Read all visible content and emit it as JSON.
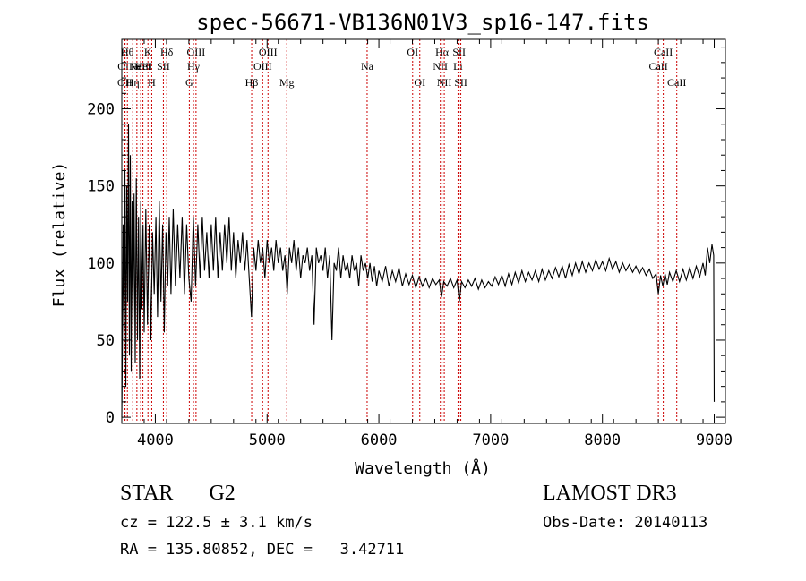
{
  "chart_data": {
    "type": "line",
    "title": "spec-56671-VB136N01V3_sp16-147.fits",
    "xlabel": "Wavelength (Å)",
    "ylabel": "Flux (relative)",
    "xlim": [
      3700,
      9100
    ],
    "ylim": [
      -4,
      245
    ],
    "xticks": [
      4000,
      5000,
      6000,
      7000,
      8000,
      9000
    ],
    "yticks": [
      0,
      50,
      100,
      150,
      200
    ],
    "xtick_labels": [
      "4000",
      "5000",
      "6000",
      "7000",
      "8000",
      "9000"
    ],
    "ytick_labels": [
      "0",
      "50",
      "100",
      "150",
      "200"
    ],
    "line_color": "#000000",
    "marker_color": "#cc0000",
    "series": [
      {
        "name": "flux",
        "points": [
          [
            3700,
            0
          ],
          [
            3705,
            40
          ],
          [
            3712,
            125
          ],
          [
            3720,
            55
          ],
          [
            3728,
            160
          ],
          [
            3736,
            20
          ],
          [
            3744,
            150
          ],
          [
            3752,
            75
          ],
          [
            3760,
            190
          ],
          [
            3768,
            40
          ],
          [
            3776,
            170
          ],
          [
            3784,
            30
          ],
          [
            3792,
            140
          ],
          [
            3800,
            60
          ],
          [
            3810,
            145
          ],
          [
            3820,
            35
          ],
          [
            3830,
            155
          ],
          [
            3840,
            50
          ],
          [
            3850,
            130
          ],
          [
            3860,
            25
          ],
          [
            3870,
            140
          ],
          [
            3880,
            70
          ],
          [
            3890,
            125
          ],
          [
            3900,
            55
          ],
          [
            3915,
            135
          ],
          [
            3930,
            60
          ],
          [
            3945,
            125
          ],
          [
            3960,
            50
          ],
          [
            3975,
            120
          ],
          [
            3990,
            80
          ],
          [
            4005,
            130
          ],
          [
            4020,
            65
          ],
          [
            4035,
            140
          ],
          [
            4050,
            75
          ],
          [
            4065,
            125
          ],
          [
            4080,
            55
          ],
          [
            4095,
            120
          ],
          [
            4110,
            85
          ],
          [
            4125,
            130
          ],
          [
            4140,
            80
          ],
          [
            4160,
            135
          ],
          [
            4180,
            85
          ],
          [
            4200,
            125
          ],
          [
            4220,
            90
          ],
          [
            4240,
            130
          ],
          [
            4260,
            80
          ],
          [
            4280,
            125
          ],
          [
            4300,
            90
          ],
          [
            4320,
            75
          ],
          [
            4340,
            130
          ],
          [
            4360,
            85
          ],
          [
            4380,
            125
          ],
          [
            4400,
            90
          ],
          [
            4420,
            130
          ],
          [
            4440,
            95
          ],
          [
            4460,
            120
          ],
          [
            4480,
            90
          ],
          [
            4500,
            125
          ],
          [
            4520,
            95
          ],
          [
            4540,
            130
          ],
          [
            4560,
            90
          ],
          [
            4580,
            120
          ],
          [
            4600,
            95
          ],
          [
            4620,
            125
          ],
          [
            4640,
            100
          ],
          [
            4660,
            130
          ],
          [
            4680,
            95
          ],
          [
            4700,
            120
          ],
          [
            4720,
            90
          ],
          [
            4740,
            115
          ],
          [
            4760,
            100
          ],
          [
            4780,
            120
          ],
          [
            4800,
            95
          ],
          [
            4820,
            115
          ],
          [
            4840,
            90
          ],
          [
            4860,
            65
          ],
          [
            4880,
            110
          ],
          [
            4900,
            95
          ],
          [
            4920,
            115
          ],
          [
            4940,
            100
          ],
          [
            4960,
            110
          ],
          [
            4980,
            90
          ],
          [
            5000,
            115
          ],
          [
            5020,
            100
          ],
          [
            5040,
            110
          ],
          [
            5060,
            95
          ],
          [
            5080,
            115
          ],
          [
            5100,
            100
          ],
          [
            5120,
            110
          ],
          [
            5140,
            95
          ],
          [
            5160,
            105
          ],
          [
            5180,
            80
          ],
          [
            5200,
            110
          ],
          [
            5220,
            100
          ],
          [
            5240,
            115
          ],
          [
            5260,
            95
          ],
          [
            5280,
            110
          ],
          [
            5300,
            90
          ],
          [
            5320,
            105
          ],
          [
            5340,
            100
          ],
          [
            5360,
            110
          ],
          [
            5380,
            95
          ],
          [
            5400,
            105
          ],
          [
            5420,
            60
          ],
          [
            5440,
            110
          ],
          [
            5460,
            100
          ],
          [
            5480,
            105
          ],
          [
            5500,
            95
          ],
          [
            5520,
            110
          ],
          [
            5540,
            90
          ],
          [
            5560,
            105
          ],
          [
            5580,
            50
          ],
          [
            5600,
            100
          ],
          [
            5620,
            95
          ],
          [
            5640,
            110
          ],
          [
            5660,
            90
          ],
          [
            5680,
            105
          ],
          [
            5700,
            95
          ],
          [
            5720,
            100
          ],
          [
            5740,
            90
          ],
          [
            5760,
            105
          ],
          [
            5780,
            95
          ],
          [
            5800,
            100
          ],
          [
            5820,
            85
          ],
          [
            5840,
            105
          ],
          [
            5860,
            95
          ],
          [
            5880,
            100
          ],
          [
            5900,
            90
          ],
          [
            5920,
            100
          ],
          [
            5940,
            88
          ],
          [
            5960,
            98
          ],
          [
            5980,
            85
          ],
          [
            6000,
            95
          ],
          [
            6030,
            88
          ],
          [
            6060,
            98
          ],
          [
            6090,
            85
          ],
          [
            6120,
            95
          ],
          [
            6150,
            88
          ],
          [
            6180,
            97
          ],
          [
            6210,
            85
          ],
          [
            6240,
            93
          ],
          [
            6270,
            86
          ],
          [
            6300,
            92
          ],
          [
            6330,
            84
          ],
          [
            6360,
            91
          ],
          [
            6390,
            85
          ],
          [
            6420,
            90
          ],
          [
            6450,
            84
          ],
          [
            6480,
            90
          ],
          [
            6510,
            86
          ],
          [
            6540,
            89
          ],
          [
            6560,
            78
          ],
          [
            6580,
            88
          ],
          [
            6610,
            85
          ],
          [
            6640,
            90
          ],
          [
            6670,
            84
          ],
          [
            6700,
            89
          ],
          [
            6720,
            75
          ],
          [
            6740,
            88
          ],
          [
            6770,
            84
          ],
          [
            6800,
            89
          ],
          [
            6830,
            85
          ],
          [
            6860,
            90
          ],
          [
            6890,
            83
          ],
          [
            6920,
            89
          ],
          [
            6950,
            84
          ],
          [
            6980,
            88
          ],
          [
            7010,
            85
          ],
          [
            7040,
            91
          ],
          [
            7070,
            86
          ],
          [
            7100,
            92
          ],
          [
            7130,
            85
          ],
          [
            7160,
            93
          ],
          [
            7190,
            86
          ],
          [
            7220,
            94
          ],
          [
            7250,
            87
          ],
          [
            7280,
            95
          ],
          [
            7310,
            88
          ],
          [
            7340,
            94
          ],
          [
            7370,
            89
          ],
          [
            7400,
            95
          ],
          [
            7430,
            88
          ],
          [
            7460,
            96
          ],
          [
            7490,
            89
          ],
          [
            7520,
            95
          ],
          [
            7550,
            90
          ],
          [
            7580,
            97
          ],
          [
            7610,
            91
          ],
          [
            7640,
            98
          ],
          [
            7670,
            90
          ],
          [
            7700,
            99
          ],
          [
            7730,
            92
          ],
          [
            7760,
            100
          ],
          [
            7790,
            93
          ],
          [
            7820,
            101
          ],
          [
            7850,
            94
          ],
          [
            7880,
            100
          ],
          [
            7910,
            95
          ],
          [
            7940,
            102
          ],
          [
            7970,
            96
          ],
          [
            8000,
            101
          ],
          [
            8030,
            95
          ],
          [
            8060,
            103
          ],
          [
            8090,
            96
          ],
          [
            8120,
            101
          ],
          [
            8150,
            94
          ],
          [
            8180,
            100
          ],
          [
            8210,
            95
          ],
          [
            8240,
            99
          ],
          [
            8270,
            94
          ],
          [
            8300,
            98
          ],
          [
            8330,
            93
          ],
          [
            8360,
            97
          ],
          [
            8390,
            92
          ],
          [
            8420,
            96
          ],
          [
            8450,
            90
          ],
          [
            8480,
            93
          ],
          [
            8500,
            80
          ],
          [
            8520,
            92
          ],
          [
            8540,
            85
          ],
          [
            8560,
            93
          ],
          [
            8580,
            86
          ],
          [
            8600,
            94
          ],
          [
            8630,
            88
          ],
          [
            8660,
            95
          ],
          [
            8690,
            88
          ],
          [
            8720,
            96
          ],
          [
            8750,
            89
          ],
          [
            8780,
            97
          ],
          [
            8810,
            90
          ],
          [
            8840,
            98
          ],
          [
            8870,
            91
          ],
          [
            8900,
            100
          ],
          [
            8920,
            92
          ],
          [
            8940,
            110
          ],
          [
            8960,
            100
          ],
          [
            8980,
            112
          ],
          [
            8995,
            105
          ],
          [
            9000,
            10
          ]
        ]
      }
    ],
    "line_markers": [
      {
        "wl": 3727,
        "top_label": "",
        "label": "OII",
        "row": 3
      },
      {
        "wl": 3729,
        "top_label": "",
        "label": "OII",
        "row": 2
      },
      {
        "wl": 3750,
        "top_label": "",
        "label": "Hθ",
        "row": 1
      },
      {
        "wl": 3798,
        "top_label": "",
        "label": "Hη",
        "row": 3
      },
      {
        "wl": 3835,
        "top_label": "",
        "label": "Hε",
        "row": 2
      },
      {
        "wl": 3869,
        "top_label": "",
        "label": "NeIII",
        "row": 2
      },
      {
        "wl": 3889,
        "top_label": "",
        "label": "HeI",
        "row": 2
      },
      {
        "wl": 3934,
        "top_label": "",
        "label": "K",
        "row": 1
      },
      {
        "wl": 3968,
        "top_label": "",
        "label": "H",
        "row": 3
      },
      {
        "wl": 4072,
        "top_label": "",
        "label": "SII",
        "row": 2
      },
      {
        "wl": 4102,
        "top_label": "",
        "label": "Hδ",
        "row": 1
      },
      {
        "wl": 4304,
        "top_label": "",
        "label": "G",
        "row": 3
      },
      {
        "wl": 4341,
        "top_label": "",
        "label": "Hγ",
        "row": 2
      },
      {
        "wl": 4364,
        "top_label": "",
        "label": "OIII",
        "row": 1
      },
      {
        "wl": 4862,
        "top_label": "",
        "label": "Hβ",
        "row": 3
      },
      {
        "wl": 4960,
        "top_label": "",
        "label": "OIII",
        "row": 2
      },
      {
        "wl": 5008,
        "top_label": "",
        "label": "OIII",
        "row": 1
      },
      {
        "wl": 5176,
        "top_label": "",
        "label": "Mg",
        "row": 3
      },
      {
        "wl": 5895,
        "top_label": "",
        "label": "Na",
        "row": 2
      },
      {
        "wl": 6302,
        "top_label": "",
        "label": "OI",
        "row": 1
      },
      {
        "wl": 6366,
        "top_label": "",
        "label": "OI",
        "row": 3
      },
      {
        "wl": 6550,
        "top_label": "",
        "label": "NII",
        "row": 2
      },
      {
        "wl": 6565,
        "top_label": "",
        "label": "Hα",
        "row": 1
      },
      {
        "wl": 6585,
        "top_label": "",
        "label": "NII",
        "row": 3
      },
      {
        "wl": 6708,
        "top_label": "",
        "label": "Li",
        "row": 2
      },
      {
        "wl": 6718,
        "top_label": "",
        "label": "SII",
        "row": 1
      },
      {
        "wl": 6733,
        "top_label": "",
        "label": "SII",
        "row": 3
      },
      {
        "wl": 8500,
        "top_label": "",
        "label": "CaII",
        "row": 2
      },
      {
        "wl": 8544,
        "top_label": "",
        "label": "CaII",
        "row": 1
      },
      {
        "wl": 8665,
        "top_label": "",
        "label": "CaII",
        "row": 3
      }
    ]
  },
  "info": {
    "class_label": "STAR",
    "subclass_label": "G2",
    "survey": "LAMOST DR3",
    "cz_line": "cz = 122.5 ± 3.1 km/s",
    "obs_line": "Obs-Date: 20140113",
    "radec_line": "RA = 135.80852, DEC =   3.42711"
  }
}
